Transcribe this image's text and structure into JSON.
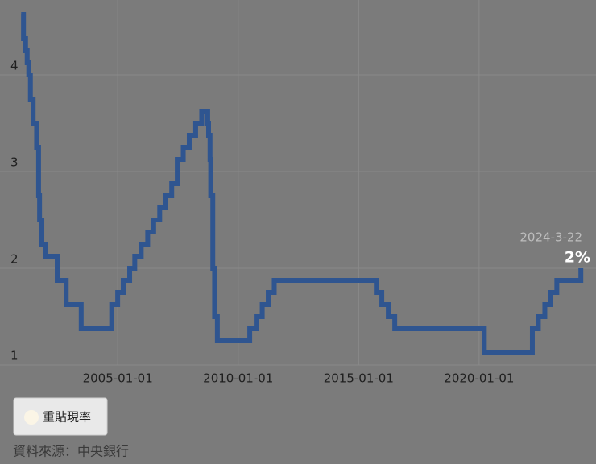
{
  "chart_data": {
    "type": "step-line",
    "source": "資料來源：中央銀行",
    "annotation": {
      "date": "2024-3-22",
      "value": "2%"
    },
    "series": [
      {
        "name": "重貼現率",
        "color": "#2f5590",
        "x": [
          "2000-12-29",
          "2001-02-02",
          "2001-03-06",
          "2001-03-30",
          "2001-04-23",
          "2001-05-18",
          "2001-06-29",
          "2001-08-20",
          "2001-09-19",
          "2001-10-04",
          "2001-11-08",
          "2001-12-28",
          "2002-06-28",
          "2002-11-12",
          "2003-06-27",
          "2004-10-01",
          "2004-12-31",
          "2005-03-25",
          "2005-07-01",
          "2005-09-16",
          "2005-12-23",
          "2006-03-31",
          "2006-06-30",
          "2006-09-29",
          "2006-12-29",
          "2007-03-30",
          "2007-06-22",
          "2007-09-21",
          "2007-12-21",
          "2008-03-27",
          "2008-06-27",
          "2008-09-26",
          "2008-10-09",
          "2008-10-31",
          "2008-11-10",
          "2008-12-12",
          "2009-01-08",
          "2009-02-19",
          "2010-06-25",
          "2010-10-01",
          "2010-12-31",
          "2011-04-01",
          "2011-07-01",
          "2015-09-25",
          "2015-12-18",
          "2016-03-25",
          "2016-07-01",
          "2020-03-20",
          "2022-03-18",
          "2022-06-17",
          "2022-09-23",
          "2022-12-16",
          "2023-03-24",
          "2024-03-22"
        ],
        "values": [
          4.625,
          4.375,
          4.25,
          4.125,
          4.0,
          3.75,
          3.5,
          3.25,
          2.75,
          2.5,
          2.25,
          2.125,
          1.875,
          1.625,
          1.375,
          1.625,
          1.75,
          1.875,
          2.0,
          2.125,
          2.25,
          2.375,
          2.5,
          2.625,
          2.75,
          2.875,
          3.125,
          3.25,
          3.375,
          3.5,
          3.625,
          3.5,
          3.375,
          3.125,
          2.75,
          2.0,
          1.5,
          1.25,
          1.375,
          1.5,
          1.625,
          1.75,
          1.875,
          1.75,
          1.625,
          1.5,
          1.375,
          1.125,
          1.375,
          1.5,
          1.625,
          1.75,
          1.875,
          2.0
        ]
      }
    ],
    "xlim": [
      "2000-10-01",
      "2024-06-01"
    ],
    "xticks": [
      "2005-01-01",
      "2010-01-01",
      "2015-01-01",
      "2020-01-01"
    ],
    "ylim": [
      1,
      4.75
    ],
    "yticks": [
      1,
      2,
      3,
      4
    ],
    "grid": true
  }
}
